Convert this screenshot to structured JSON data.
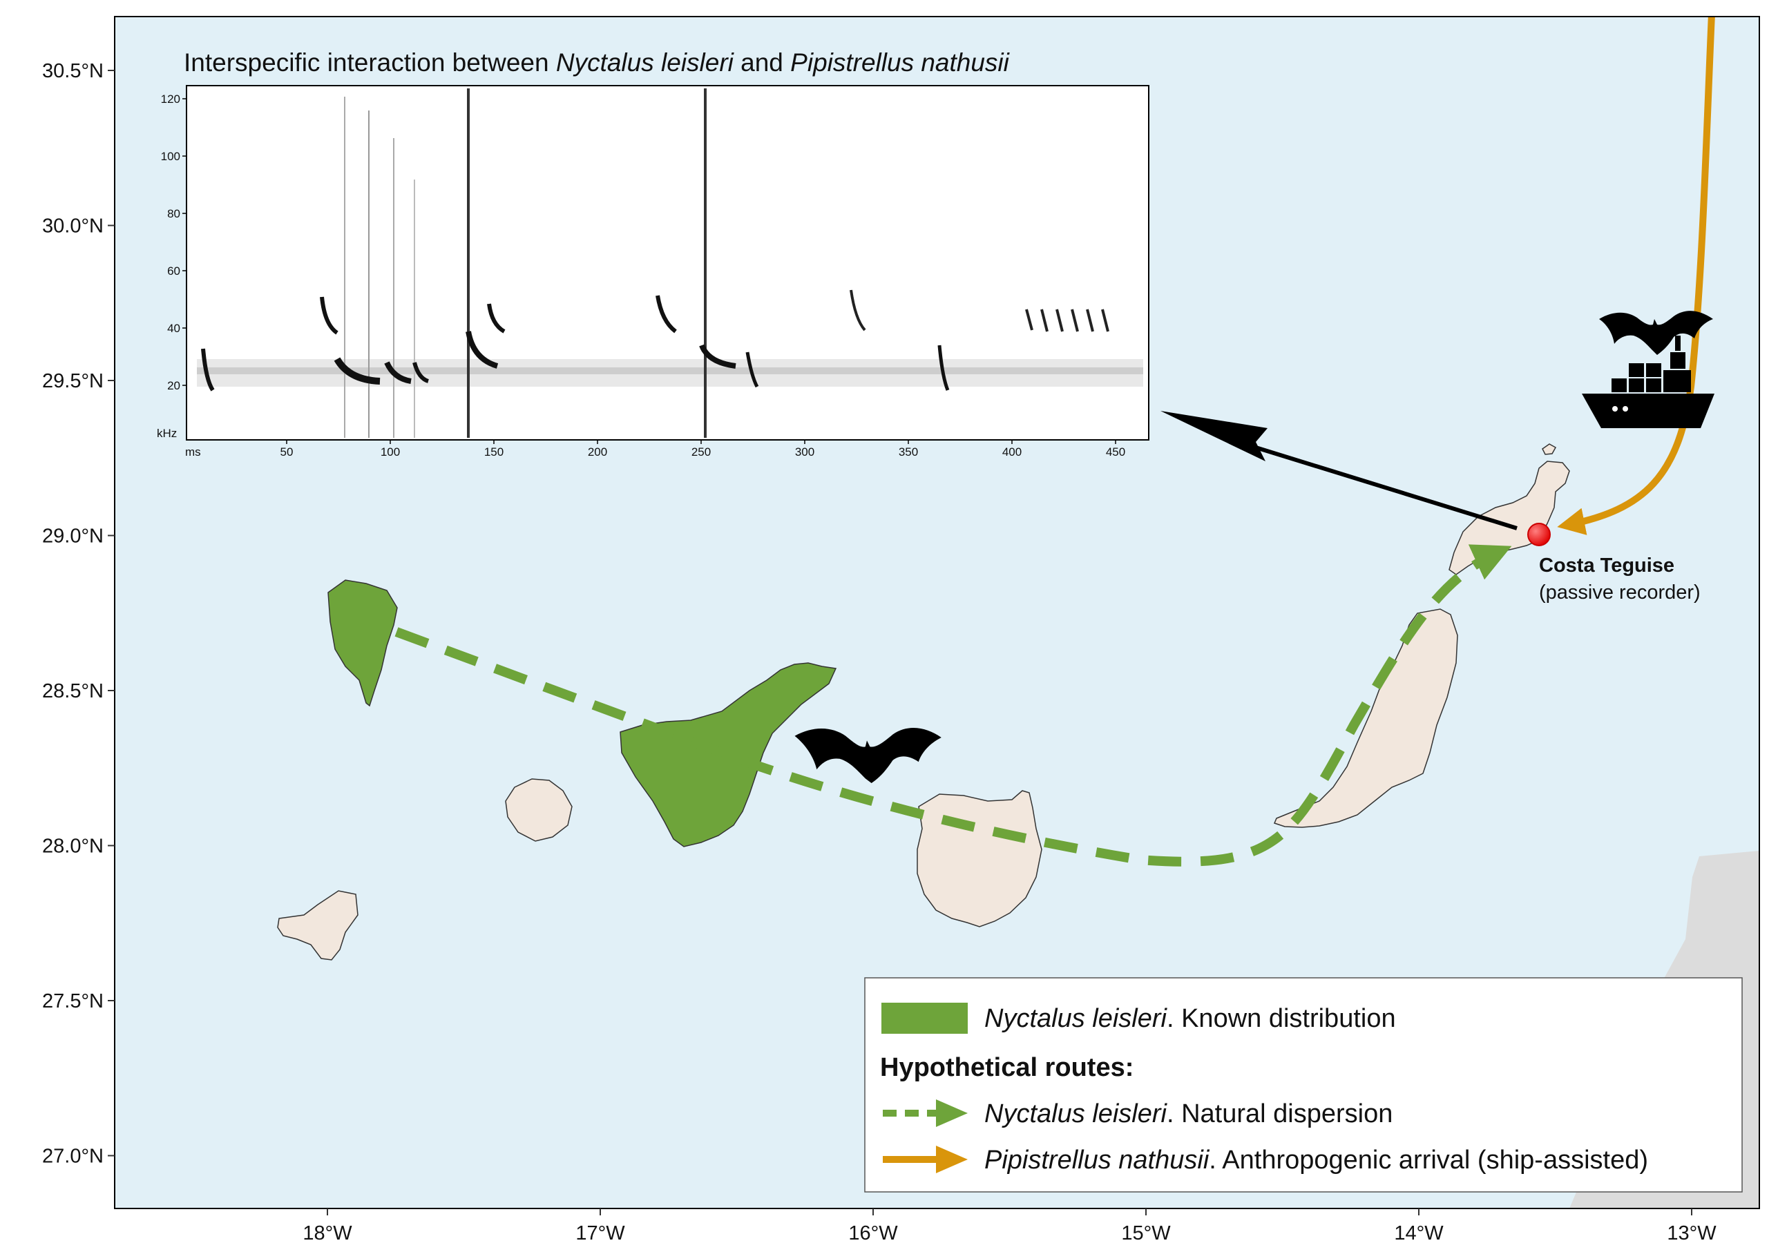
{
  "axes": {
    "lat_labels": [
      "30.5°N",
      "30.0°N",
      "29.5°N",
      "29.0°N",
      "28.5°N",
      "28.0°N",
      "27.5°N",
      "27.0°N"
    ],
    "lon_labels": [
      "18°W",
      "17°W",
      "16°W",
      "15°W",
      "14°W",
      "13°W"
    ],
    "lat_range": [
      26.85,
      30.68
    ],
    "lon_range": [
      -18.83,
      -12.75
    ]
  },
  "colors": {
    "sea": "#e1f0f7",
    "land": "#f2e7dd",
    "nyctalus": "#6ea43a",
    "pipistrellus": "#d9950b",
    "africa": "#dcdcdc",
    "recorder": "#ff2b2b"
  },
  "inset": {
    "title_parts": [
      {
        "text": "Interspecific interaction between ",
        "style": "normal"
      },
      {
        "text": "Nyctalus leisleri",
        "style": "italic"
      },
      {
        "text": " and ",
        "style": "normal"
      },
      {
        "text": "Pipistrellus nathusii",
        "style": "italic"
      }
    ],
    "y_ticks": [
      "120",
      "100",
      "80",
      "60",
      "40",
      "20"
    ],
    "y_unit": "kHz",
    "x_ticks": [
      "50",
      "100",
      "150",
      "200",
      "250",
      "300",
      "350",
      "400",
      "450"
    ],
    "x_unit": "ms"
  },
  "recorder": {
    "name": "Costa Teguise",
    "note": "(passive recorder)",
    "lon": -13.52,
    "lat": 29.0
  },
  "legend": {
    "distribution": {
      "species": "Nyctalus leisleri",
      "rest": ". Known distribution"
    },
    "routes_heading": "Hypothetical routes:",
    "natural": {
      "species": "Nyctalus leisleri",
      "rest": ". Natural dispersion"
    },
    "anthropogenic": {
      "species": "Pipistrellus nathusii",
      "rest": ". Anthropogenic arrival (ship-assisted)"
    }
  },
  "icons": [
    "bat-icon",
    "ship-icon"
  ]
}
